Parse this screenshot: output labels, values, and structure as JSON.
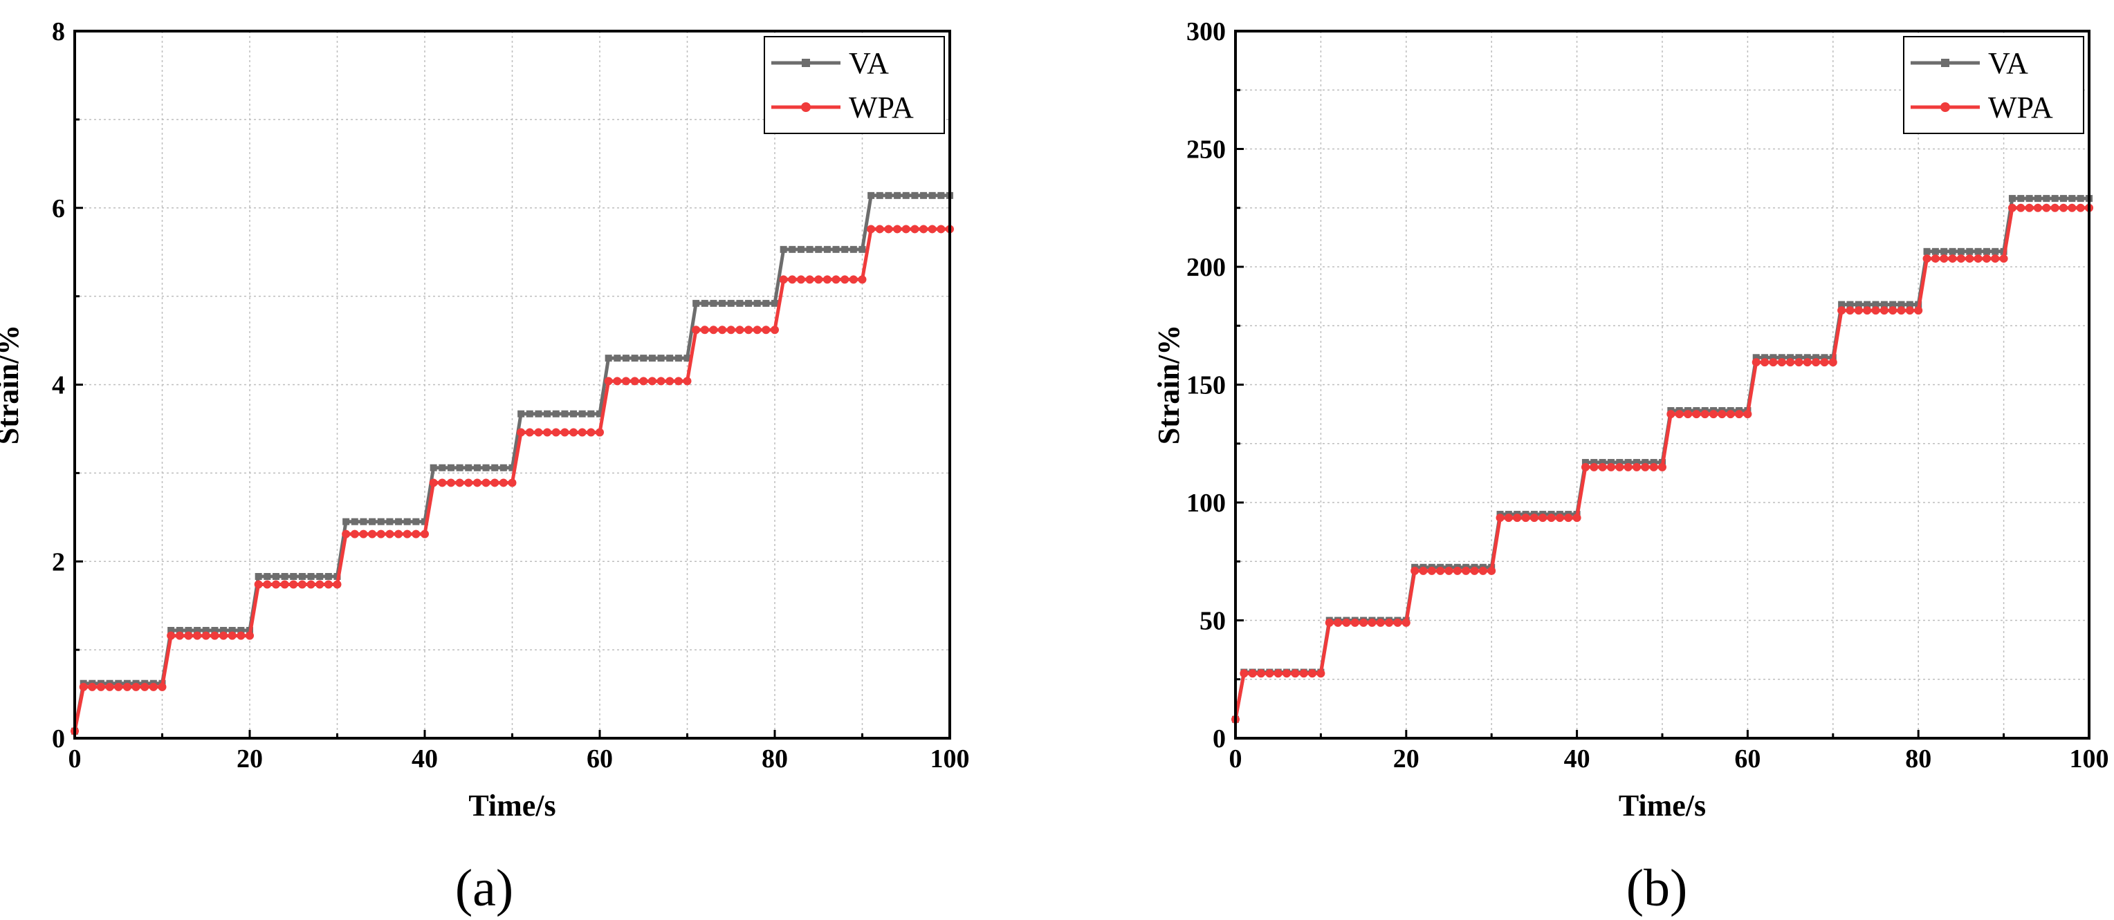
{
  "colors": {
    "VA": "#6d6d6d",
    "WPA": "#f03b3b",
    "grid": "#bdbdbd"
  },
  "chart_data": [
    {
      "type": "line",
      "panel_label": "(a)",
      "xlabel": "Time/s",
      "ylabel": "Strain/%",
      "xlim": [
        0,
        100
      ],
      "ylim": [
        0,
        8
      ],
      "xticks": [
        "0",
        "20",
        "40",
        "60",
        "80",
        "100"
      ],
      "yticks": [
        "0",
        "2",
        "4",
        "6",
        "8"
      ],
      "grid": true,
      "legend": "top-right",
      "marker_interval_s": 1,
      "series": [
        {
          "name": "VA",
          "marker": "square",
          "start": 0.08,
          "steps": [
            0.62,
            1.22,
            1.83,
            2.45,
            3.06,
            3.67,
            4.3,
            4.92,
            5.53,
            6.14
          ]
        },
        {
          "name": "WPA",
          "marker": "circle",
          "start": 0.08,
          "steps": [
            0.58,
            1.16,
            1.74,
            2.31,
            2.89,
            3.46,
            4.04,
            4.62,
            5.19,
            5.76
          ]
        }
      ]
    },
    {
      "type": "line",
      "panel_label": "(b)",
      "xlabel": "Time/s",
      "ylabel": "Strain/%",
      "xlim": [
        0,
        100
      ],
      "ylim": [
        0,
        300
      ],
      "xticks": [
        "0",
        "20",
        "40",
        "60",
        "80",
        "100"
      ],
      "yticks": [
        "0",
        "50",
        "100",
        "150",
        "200",
        "250",
        "300"
      ],
      "grid": true,
      "legend": "top-right",
      "marker_interval_s": 1,
      "series": [
        {
          "name": "VA",
          "marker": "square",
          "start": 8,
          "steps": [
            28,
            50,
            72.5,
            95,
            117,
            139,
            161.5,
            184,
            206.5,
            229
          ]
        },
        {
          "name": "WPA",
          "marker": "circle",
          "start": 8,
          "steps": [
            27.5,
            49,
            71,
            93.5,
            115,
            137.5,
            159.5,
            181.5,
            203.5,
            225
          ]
        }
      ]
    }
  ]
}
